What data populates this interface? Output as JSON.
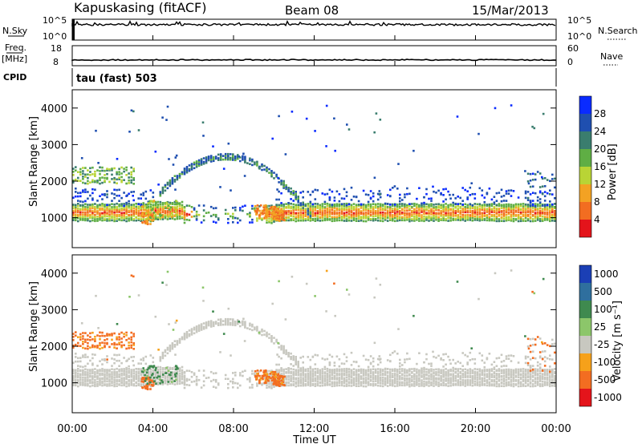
{
  "header": {
    "station": "Kapuskasing (fitACF)",
    "beam": "Beam 08",
    "date": "15/Mar/2013"
  },
  "strips": {
    "nsky_label": "N.Sky",
    "nsky_ticks": [
      "10^5",
      "10^0"
    ],
    "nsearch_label": "N.Search",
    "nsearch_ticks": [
      "10^5",
      "10^0"
    ],
    "freq_label": "Freq.",
    "freq_unit": "[MHz]",
    "freq_ticks": [
      "18",
      "8"
    ],
    "nave_label": "Nave",
    "nave_ticks": [
      "60",
      "0"
    ],
    "cpid_label": "CPID",
    "cpid_value": "tau (fast) 503"
  },
  "chart_data": [
    {
      "type": "heatmap",
      "title": "Power",
      "ylabel": "Slant Range [km]",
      "ylim": [
        180,
        4500
      ],
      "yticks": [
        "4000",
        "3000",
        "2000",
        "1000"
      ],
      "colorbar_label": "Power [dB]",
      "colorbar_ticks": [
        "28",
        "24",
        "20",
        "16",
        "12",
        "8",
        "4"
      ],
      "colors": [
        "#0a2bff",
        "#1f4fb0",
        "#3a7d6e",
        "#5fae44",
        "#b9d435",
        "#f3a223",
        "#f26d21",
        "#e4141b"
      ],
      "echo_bands": [
        {
          "name": "main band",
          "x": [
            "10:00",
            "12:00",
            "16:00",
            "20:00",
            "24:00"
          ],
          "range_km": [
            1000,
            1050,
            1050,
            1050,
            1050
          ],
          "power_db": [
            20,
            24,
            16,
            16,
            20
          ]
        },
        {
          "name": "arc",
          "x": [
            "04:30",
            "06:00",
            "07:30",
            "09:00",
            "10:30",
            "11:30"
          ],
          "range_km": [
            1500,
            2300,
            2700,
            2650,
            2300,
            1500
          ],
          "power_db": [
            12,
            12,
            8,
            8,
            12,
            16
          ]
        },
        {
          "name": "early patch",
          "x": [
            "00:15",
            "03:00"
          ],
          "range_km": [
            2200,
            2200
          ],
          "power_db": [
            16,
            16
          ]
        },
        {
          "name": "bright spots",
          "x": [
            "03:40",
            "09:20",
            "09:50"
          ],
          "range_km": [
            1000,
            1200,
            1150
          ],
          "power_db": [
            28,
            28,
            28
          ]
        }
      ]
    },
    {
      "type": "heatmap",
      "title": "Velocity",
      "ylabel": "Slant Range [km]",
      "ylim": [
        180,
        4500
      ],
      "yticks": [
        "4000",
        "3000",
        "2000",
        "1000"
      ],
      "xlabel": "Time UT",
      "xticks": [
        "00:00",
        "04:00",
        "08:00",
        "12:00",
        "16:00",
        "20:00",
        "00:00"
      ],
      "colorbar_label": "Velocity [m s⁻¹]",
      "colorbar_ticks": [
        "1000",
        "500",
        "100",
        "25",
        "-25",
        "-100",
        "-500",
        "-1000"
      ],
      "colors": [
        "#1b3fb5",
        "#2f6f9e",
        "#3f8a4f",
        "#8cc66a",
        "#c8c8c0",
        "#f6a11a",
        "#f36d21",
        "#e4141b"
      ],
      "echo_bands": [
        {
          "name": "ground scatter",
          "x": [
            "00:00",
            "06:00",
            "08:00",
            "12:00",
            "24:00"
          ],
          "range_km": [
            1000,
            2300,
            2700,
            1100,
            1000
          ],
          "velocity": [
            0,
            0,
            0,
            0,
            0
          ]
        },
        {
          "name": "early patch",
          "x": [
            "00:15",
            "03:00"
          ],
          "range_km": [
            2200,
            2200
          ],
          "velocity": [
            -300,
            -300
          ]
        },
        {
          "name": "morning patch",
          "x": [
            "03:30",
            "05:00"
          ],
          "range_km": [
            1200,
            1200
          ],
          "velocity": [
            150,
            150
          ]
        },
        {
          "name": "afternoon patches",
          "x": [
            "09:00",
            "11:30"
          ],
          "range_km": [
            1200,
            1200
          ],
          "velocity": [
            -200,
            -200
          ]
        }
      ]
    }
  ]
}
